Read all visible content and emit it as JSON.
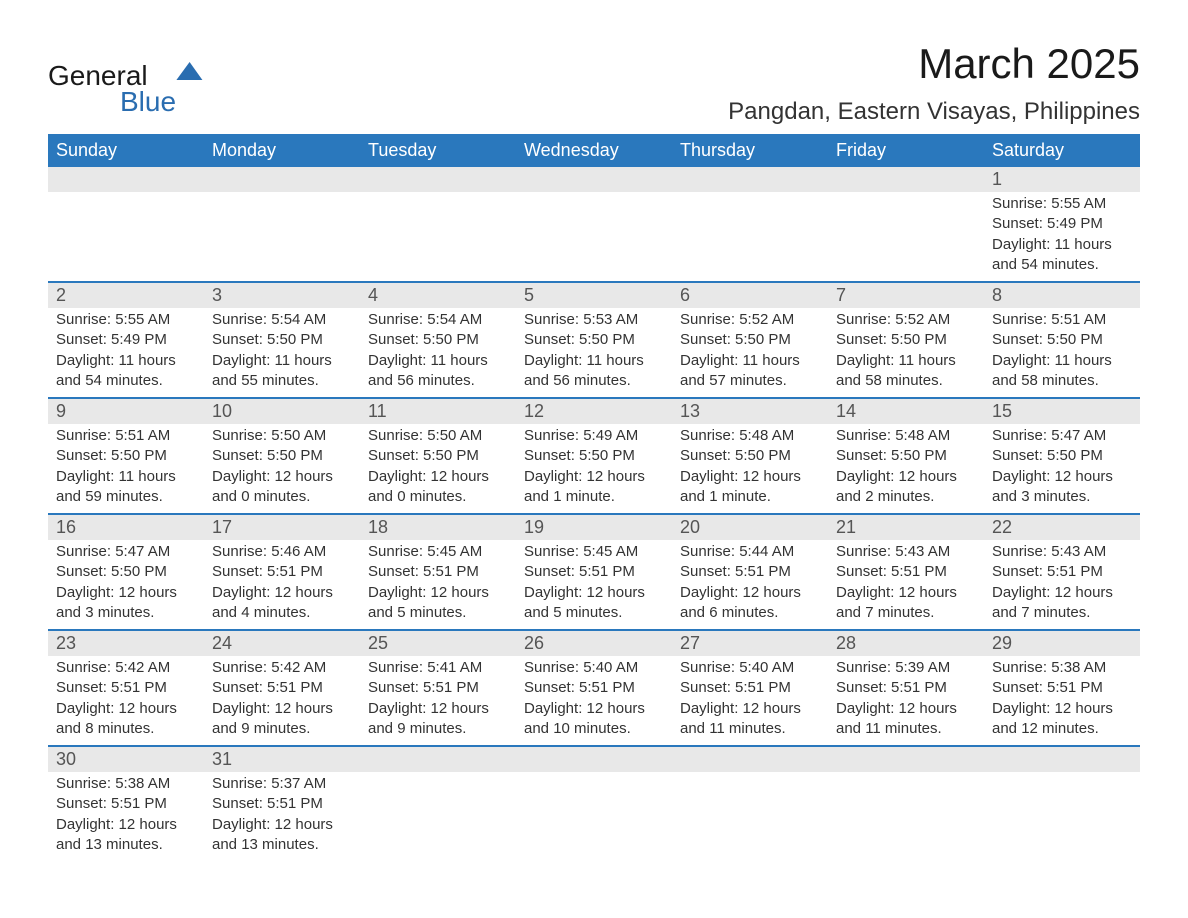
{
  "branding": {
    "logo_general": "General",
    "logo_blue": "Blue"
  },
  "header": {
    "month_title": "March 2025",
    "location": "Pangdan, Eastern Visayas, Philippines"
  },
  "style": {
    "header_bg": "#2a78bd",
    "header_fg": "#ffffff",
    "daynum_bg": "#e8e8e8",
    "row_border": "#2a78bd",
    "text_color": "#333333",
    "title_fontsize": 42,
    "location_fontsize": 24,
    "dayhead_fontsize": 18,
    "cell_fontsize": 15
  },
  "calendar": {
    "day_headers": [
      "Sunday",
      "Monday",
      "Tuesday",
      "Wednesday",
      "Thursday",
      "Friday",
      "Saturday"
    ],
    "weeks": [
      [
        null,
        null,
        null,
        null,
        null,
        null,
        {
          "n": "1",
          "sunrise": "Sunrise: 5:55 AM",
          "sunset": "Sunset: 5:49 PM",
          "daylight": "Daylight: 11 hours and 54 minutes."
        }
      ],
      [
        {
          "n": "2",
          "sunrise": "Sunrise: 5:55 AM",
          "sunset": "Sunset: 5:49 PM",
          "daylight": "Daylight: 11 hours and 54 minutes."
        },
        {
          "n": "3",
          "sunrise": "Sunrise: 5:54 AM",
          "sunset": "Sunset: 5:50 PM",
          "daylight": "Daylight: 11 hours and 55 minutes."
        },
        {
          "n": "4",
          "sunrise": "Sunrise: 5:54 AM",
          "sunset": "Sunset: 5:50 PM",
          "daylight": "Daylight: 11 hours and 56 minutes."
        },
        {
          "n": "5",
          "sunrise": "Sunrise: 5:53 AM",
          "sunset": "Sunset: 5:50 PM",
          "daylight": "Daylight: 11 hours and 56 minutes."
        },
        {
          "n": "6",
          "sunrise": "Sunrise: 5:52 AM",
          "sunset": "Sunset: 5:50 PM",
          "daylight": "Daylight: 11 hours and 57 minutes."
        },
        {
          "n": "7",
          "sunrise": "Sunrise: 5:52 AM",
          "sunset": "Sunset: 5:50 PM",
          "daylight": "Daylight: 11 hours and 58 minutes."
        },
        {
          "n": "8",
          "sunrise": "Sunrise: 5:51 AM",
          "sunset": "Sunset: 5:50 PM",
          "daylight": "Daylight: 11 hours and 58 minutes."
        }
      ],
      [
        {
          "n": "9",
          "sunrise": "Sunrise: 5:51 AM",
          "sunset": "Sunset: 5:50 PM",
          "daylight": "Daylight: 11 hours and 59 minutes."
        },
        {
          "n": "10",
          "sunrise": "Sunrise: 5:50 AM",
          "sunset": "Sunset: 5:50 PM",
          "daylight": "Daylight: 12 hours and 0 minutes."
        },
        {
          "n": "11",
          "sunrise": "Sunrise: 5:50 AM",
          "sunset": "Sunset: 5:50 PM",
          "daylight": "Daylight: 12 hours and 0 minutes."
        },
        {
          "n": "12",
          "sunrise": "Sunrise: 5:49 AM",
          "sunset": "Sunset: 5:50 PM",
          "daylight": "Daylight: 12 hours and 1 minute."
        },
        {
          "n": "13",
          "sunrise": "Sunrise: 5:48 AM",
          "sunset": "Sunset: 5:50 PM",
          "daylight": "Daylight: 12 hours and 1 minute."
        },
        {
          "n": "14",
          "sunrise": "Sunrise: 5:48 AM",
          "sunset": "Sunset: 5:50 PM",
          "daylight": "Daylight: 12 hours and 2 minutes."
        },
        {
          "n": "15",
          "sunrise": "Sunrise: 5:47 AM",
          "sunset": "Sunset: 5:50 PM",
          "daylight": "Daylight: 12 hours and 3 minutes."
        }
      ],
      [
        {
          "n": "16",
          "sunrise": "Sunrise: 5:47 AM",
          "sunset": "Sunset: 5:50 PM",
          "daylight": "Daylight: 12 hours and 3 minutes."
        },
        {
          "n": "17",
          "sunrise": "Sunrise: 5:46 AM",
          "sunset": "Sunset: 5:51 PM",
          "daylight": "Daylight: 12 hours and 4 minutes."
        },
        {
          "n": "18",
          "sunrise": "Sunrise: 5:45 AM",
          "sunset": "Sunset: 5:51 PM",
          "daylight": "Daylight: 12 hours and 5 minutes."
        },
        {
          "n": "19",
          "sunrise": "Sunrise: 5:45 AM",
          "sunset": "Sunset: 5:51 PM",
          "daylight": "Daylight: 12 hours and 5 minutes."
        },
        {
          "n": "20",
          "sunrise": "Sunrise: 5:44 AM",
          "sunset": "Sunset: 5:51 PM",
          "daylight": "Daylight: 12 hours and 6 minutes."
        },
        {
          "n": "21",
          "sunrise": "Sunrise: 5:43 AM",
          "sunset": "Sunset: 5:51 PM",
          "daylight": "Daylight: 12 hours and 7 minutes."
        },
        {
          "n": "22",
          "sunrise": "Sunrise: 5:43 AM",
          "sunset": "Sunset: 5:51 PM",
          "daylight": "Daylight: 12 hours and 7 minutes."
        }
      ],
      [
        {
          "n": "23",
          "sunrise": "Sunrise: 5:42 AM",
          "sunset": "Sunset: 5:51 PM",
          "daylight": "Daylight: 12 hours and 8 minutes."
        },
        {
          "n": "24",
          "sunrise": "Sunrise: 5:42 AM",
          "sunset": "Sunset: 5:51 PM",
          "daylight": "Daylight: 12 hours and 9 minutes."
        },
        {
          "n": "25",
          "sunrise": "Sunrise: 5:41 AM",
          "sunset": "Sunset: 5:51 PM",
          "daylight": "Daylight: 12 hours and 9 minutes."
        },
        {
          "n": "26",
          "sunrise": "Sunrise: 5:40 AM",
          "sunset": "Sunset: 5:51 PM",
          "daylight": "Daylight: 12 hours and 10 minutes."
        },
        {
          "n": "27",
          "sunrise": "Sunrise: 5:40 AM",
          "sunset": "Sunset: 5:51 PM",
          "daylight": "Daylight: 12 hours and 11 minutes."
        },
        {
          "n": "28",
          "sunrise": "Sunrise: 5:39 AM",
          "sunset": "Sunset: 5:51 PM",
          "daylight": "Daylight: 12 hours and 11 minutes."
        },
        {
          "n": "29",
          "sunrise": "Sunrise: 5:38 AM",
          "sunset": "Sunset: 5:51 PM",
          "daylight": "Daylight: 12 hours and 12 minutes."
        }
      ],
      [
        {
          "n": "30",
          "sunrise": "Sunrise: 5:38 AM",
          "sunset": "Sunset: 5:51 PM",
          "daylight": "Daylight: 12 hours and 13 minutes."
        },
        {
          "n": "31",
          "sunrise": "Sunrise: 5:37 AM",
          "sunset": "Sunset: 5:51 PM",
          "daylight": "Daylight: 12 hours and 13 minutes."
        },
        null,
        null,
        null,
        null,
        null
      ]
    ]
  }
}
